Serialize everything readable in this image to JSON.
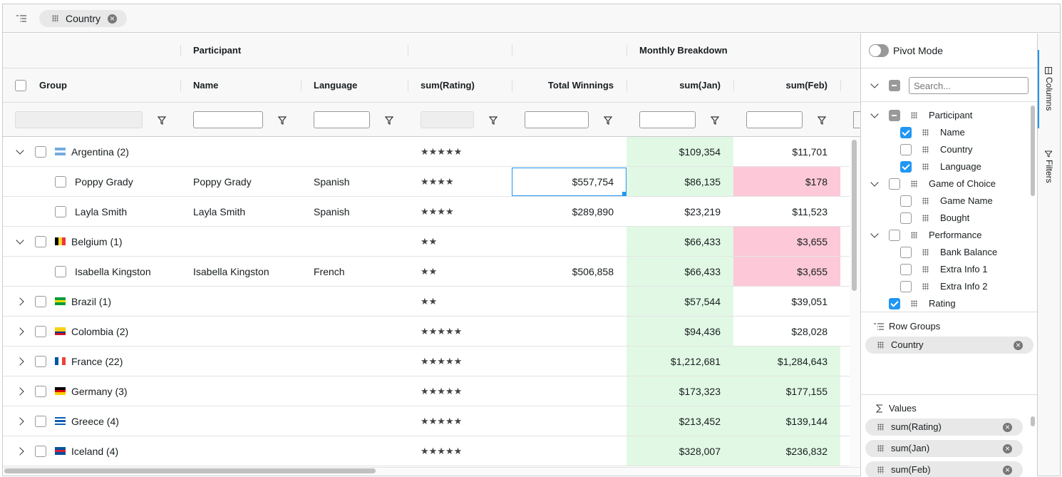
{
  "toolbar": {
    "row_group_chip": "Country"
  },
  "grid": {
    "header_groups": {
      "participant": "Participant",
      "monthly": "Monthly Breakdown"
    },
    "columns": {
      "group": "Group",
      "name": "Name",
      "language": "Language",
      "rating": "sum(Rating)",
      "winnings": "Total Winnings",
      "jan": "sum(Jan)",
      "feb": "sum(Feb)"
    },
    "rows": [
      {
        "group": "Argentina (2)",
        "flag": [
          "#74acdf",
          "#ffffff",
          "#74acdf"
        ],
        "flag_dir": "h",
        "rating": "★★★★★",
        "jan": "$109,354",
        "feb": "$11,701"
      },
      {
        "name": "Poppy Grady",
        "language": "Spanish",
        "rating": "★★★★",
        "winnings": "$557,754",
        "jan": "$86,135",
        "feb": "$178"
      },
      {
        "name": "Layla Smith",
        "language": "Spanish",
        "rating": "★★★★",
        "winnings": "$289,890",
        "jan": "$23,219",
        "feb": "$11,523"
      },
      {
        "group": "Belgium (1)",
        "flag": [
          "#000000",
          "#fdda24",
          "#ef3340"
        ],
        "flag_dir": "v",
        "rating": "★★",
        "jan": "$66,433",
        "feb": "$3,655"
      },
      {
        "name": "Isabella Kingston",
        "language": "French",
        "rating": "★★",
        "winnings": "$506,858",
        "jan": "$66,433",
        "feb": "$3,655"
      },
      {
        "group": "Brazil (1)",
        "flag": [
          "#009c3b",
          "#ffdf00",
          "#009c3b"
        ],
        "flag_dir": "h",
        "rating": "★★",
        "jan": "$57,544",
        "feb": "$39,051"
      },
      {
        "group": "Colombia (2)",
        "flag": [
          "#fcd116",
          "#fcd116",
          "#003893",
          "#ce1126"
        ],
        "flag_dir": "h",
        "rating": "★★★★★",
        "jan": "$94,436",
        "feb": "$28,028"
      },
      {
        "group": "France (22)",
        "flag": [
          "#0055a4",
          "#ffffff",
          "#ef4135"
        ],
        "flag_dir": "v",
        "rating": "★★★★★",
        "jan": "$1,212,681",
        "feb": "$1,284,643"
      },
      {
        "group": "Germany (3)",
        "flag": [
          "#000000",
          "#dd0000",
          "#ffce00"
        ],
        "flag_dir": "h",
        "rating": "★★★★★",
        "jan": "$173,323",
        "feb": "$177,155"
      },
      {
        "group": "Greece (4)",
        "flag": [
          "#0d5eaf",
          "#ffffff",
          "#0d5eaf",
          "#ffffff",
          "#0d5eaf"
        ],
        "flag_dir": "h",
        "rating": "★★★★★",
        "jan": "$213,452",
        "feb": "$139,144"
      },
      {
        "group": "Iceland (4)",
        "flag": [
          "#02529c",
          "#dc1e35",
          "#02529c"
        ],
        "flag_dir": "h",
        "rating": "★★★★★",
        "jan": "$328,007",
        "feb": "$236,832"
      }
    ]
  },
  "side_panel": {
    "pivot_mode": "Pivot Mode",
    "search_placeholder": "Search...",
    "columns": [
      {
        "label": "Participant",
        "state": "mixed",
        "children": [
          {
            "label": "Name",
            "state": "checked"
          },
          {
            "label": "Country",
            "state": "unchecked"
          },
          {
            "label": "Language",
            "state": "checked"
          }
        ]
      },
      {
        "label": "Game of Choice",
        "state": "unchecked",
        "children": [
          {
            "label": "Game Name",
            "state": "unchecked"
          },
          {
            "label": "Bought",
            "state": "unchecked"
          }
        ]
      },
      {
        "label": "Performance",
        "state": "unchecked",
        "children": [
          {
            "label": "Bank Balance",
            "state": "unchecked"
          },
          {
            "label": "Extra Info 1",
            "state": "unchecked"
          },
          {
            "label": "Extra Info 2",
            "state": "unchecked"
          }
        ]
      },
      {
        "label": "Rating",
        "state": "checked"
      }
    ],
    "row_groups_title": "Row Groups",
    "row_groups": [
      "Country"
    ],
    "values_title": "Values",
    "values": [
      "sum(Rating)",
      "sum(Jan)",
      "sum(Feb)"
    ],
    "tabs": [
      "Columns",
      "Filters"
    ]
  }
}
